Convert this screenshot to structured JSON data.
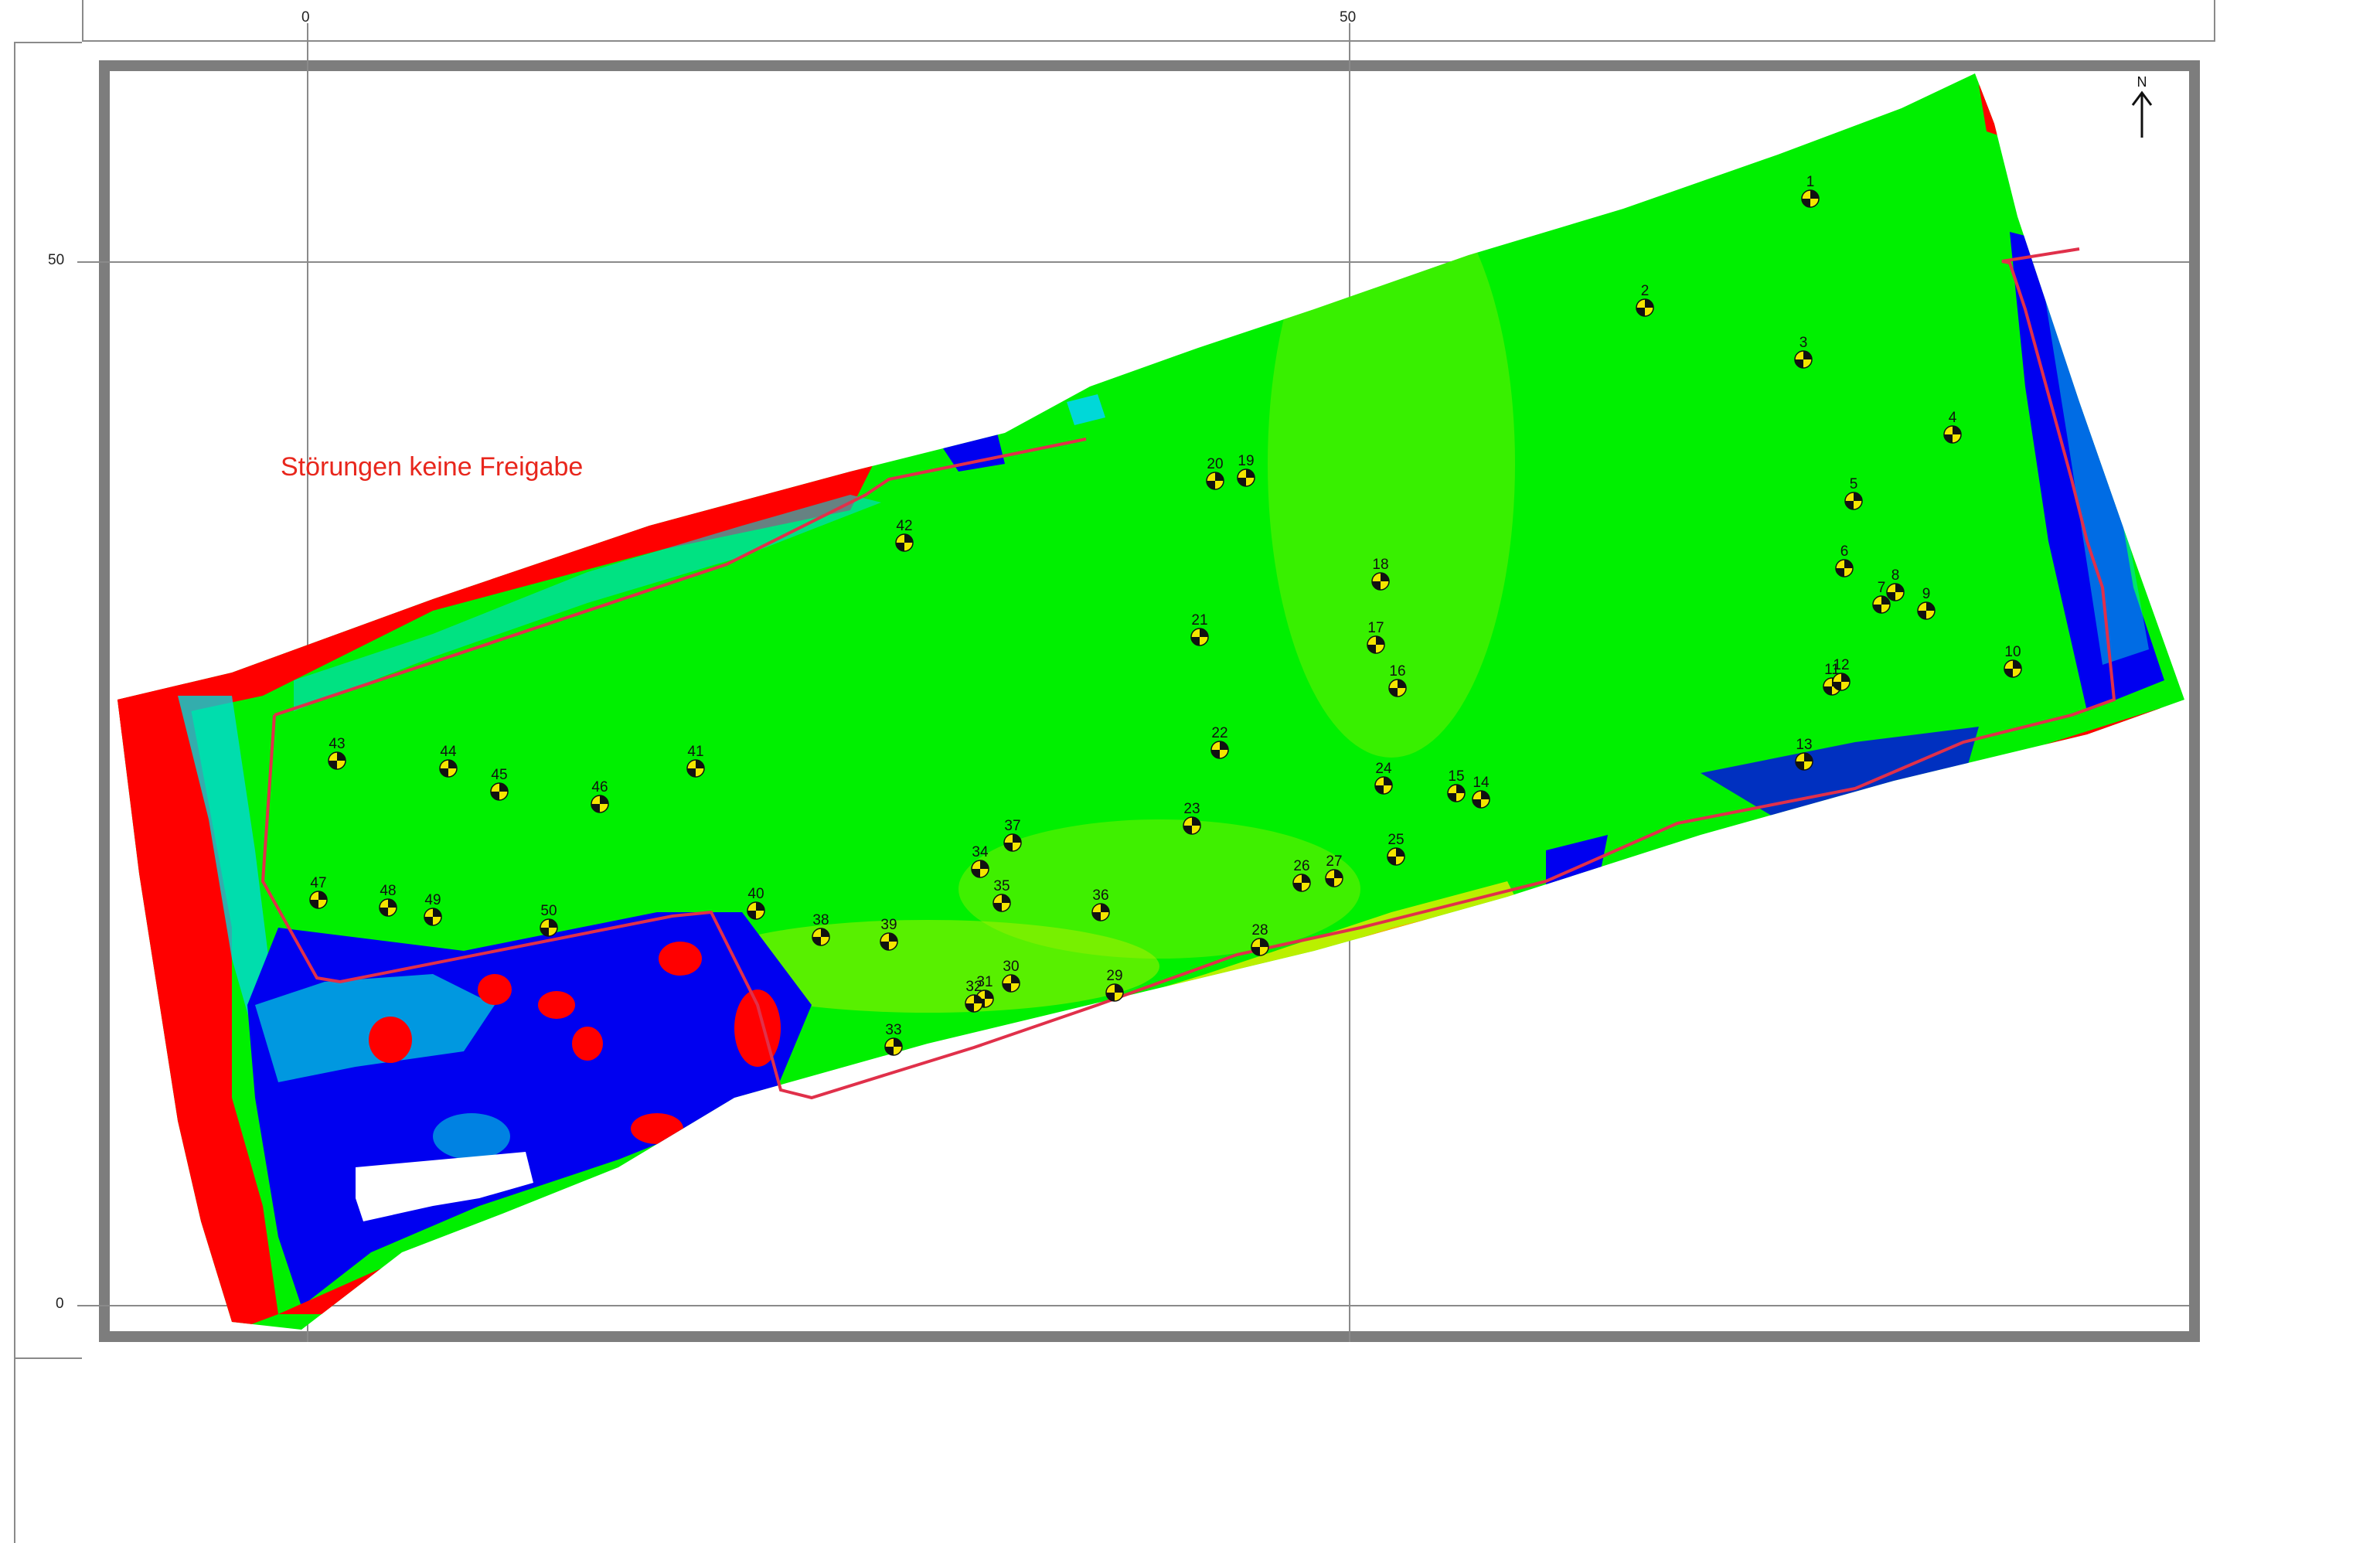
{
  "axis": {
    "x_ticks": [
      {
        "label": "0"
      },
      {
        "label": "50"
      }
    ],
    "y_ticks": [
      {
        "label": "50"
      },
      {
        "label": "0"
      }
    ]
  },
  "annotation": {
    "text": "Störungen keine Freigabe",
    "color": "#e8261c"
  },
  "north_arrow": {
    "label": "N"
  },
  "colors": {
    "background_green": "#00f000",
    "anomaly_red": "#ff0000",
    "anomaly_blue": "#0000f0",
    "transition_cyan": "#00d8d8",
    "transition_yellow": "#e8f000",
    "boundary_line": "#e0304a",
    "frame": "#7d7d7d"
  },
  "marker": {
    "icon": "survey-target-icon",
    "fill_a": "#f5e600",
    "fill_b": "#111111"
  },
  "points": [
    {
      "id": "1"
    },
    {
      "id": "2"
    },
    {
      "id": "3"
    },
    {
      "id": "4"
    },
    {
      "id": "5"
    },
    {
      "id": "6"
    },
    {
      "id": "7"
    },
    {
      "id": "8"
    },
    {
      "id": "9"
    },
    {
      "id": "10"
    },
    {
      "id": "11"
    },
    {
      "id": "12"
    },
    {
      "id": "13"
    },
    {
      "id": "14"
    },
    {
      "id": "15"
    },
    {
      "id": "16"
    },
    {
      "id": "17"
    },
    {
      "id": "18"
    },
    {
      "id": "19"
    },
    {
      "id": "20"
    },
    {
      "id": "21"
    },
    {
      "id": "22"
    },
    {
      "id": "23"
    },
    {
      "id": "24"
    },
    {
      "id": "25"
    },
    {
      "id": "26"
    },
    {
      "id": "27"
    },
    {
      "id": "28"
    },
    {
      "id": "29"
    },
    {
      "id": "30"
    },
    {
      "id": "31"
    },
    {
      "id": "32"
    },
    {
      "id": "33"
    },
    {
      "id": "34"
    },
    {
      "id": "35"
    },
    {
      "id": "36"
    },
    {
      "id": "37"
    },
    {
      "id": "38"
    },
    {
      "id": "39"
    },
    {
      "id": "40"
    },
    {
      "id": "41"
    },
    {
      "id": "42"
    },
    {
      "id": "43"
    },
    {
      "id": "44"
    },
    {
      "id": "45"
    },
    {
      "id": "46"
    },
    {
      "id": "47"
    },
    {
      "id": "48"
    },
    {
      "id": "49"
    },
    {
      "id": "50"
    }
  ]
}
